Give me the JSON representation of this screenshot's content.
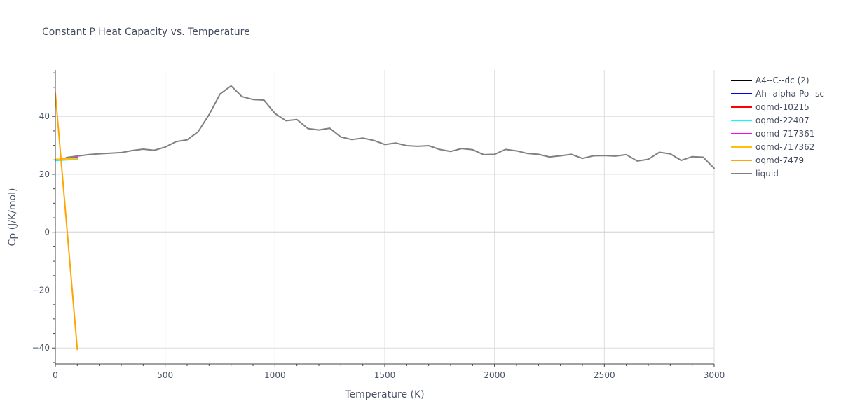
{
  "chart_data": {
    "type": "line",
    "title": "Constant P Heat Capacity vs. Temperature",
    "xlabel": "Temperature (K)",
    "ylabel": "Cp (J/K/mol)",
    "xlim": [
      0,
      3000
    ],
    "ylim": [
      -45.5,
      56
    ],
    "x_ticks": [
      0,
      500,
      1000,
      1500,
      2000,
      2500,
      3000
    ],
    "x_tick_labels": [
      "0",
      "500",
      "1000",
      "1500",
      "2000",
      "2500",
      "3000"
    ],
    "y_ticks": [
      -40,
      -20,
      0,
      20,
      40
    ],
    "y_tick_labels": [
      "−40",
      "−20",
      "0",
      "20",
      "40"
    ],
    "grid": true,
    "legend_position": "top-right",
    "series": [
      {
        "name": "A4--C--dc (2)",
        "color": "#000000",
        "x": [
          0,
          100
        ],
        "y": [
          25.0,
          25.3
        ]
      },
      {
        "name": "Ah--alpha-Po--sc",
        "color": "#0000ff",
        "x": [
          0,
          100
        ],
        "y": [
          25.0,
          25.5
        ]
      },
      {
        "name": "oqmd-10215",
        "color": "#ff0000",
        "x": [
          0,
          100
        ],
        "y": [
          25.0,
          25.6
        ]
      },
      {
        "name": "oqmd-22407",
        "color": "#00ffff",
        "x": [
          0,
          100
        ],
        "y": [
          24.8,
          25.2
        ]
      },
      {
        "name": "oqmd-717361",
        "color": "#ff00ff",
        "x": [
          0,
          100
        ],
        "y": [
          25.0,
          25.8
        ]
      },
      {
        "name": "oqmd-717362",
        "color": "#ffc107",
        "x": [
          0,
          100
        ],
        "y": [
          25.2,
          25.4
        ]
      },
      {
        "name": "oqmd-7479",
        "color": "#ffa500",
        "x": [
          0,
          100
        ],
        "y": [
          48.0,
          -40.5
        ]
      },
      {
        "name": "liquid",
        "color": "#808080",
        "x": [
          50,
          100,
          150,
          200,
          250,
          300,
          350,
          400,
          450,
          500,
          550,
          600,
          650,
          700,
          750,
          800,
          850,
          900,
          950,
          1000,
          1050,
          1100,
          1150,
          1200,
          1250,
          1300,
          1350,
          1400,
          1450,
          1500,
          1550,
          1600,
          1650,
          1700,
          1750,
          1800,
          1850,
          1900,
          1950,
          2000,
          2050,
          2100,
          2150,
          2200,
          2250,
          2300,
          2350,
          2400,
          2450,
          2500,
          2550,
          2600,
          2650,
          2700,
          2750,
          2800,
          2850,
          2900,
          2950,
          3000
        ],
        "y": [
          25.8,
          26.3,
          26.8,
          27.1,
          27.3,
          27.5,
          28.2,
          28.7,
          28.3,
          29.4,
          31.3,
          31.9,
          34.7,
          40.6,
          47.7,
          50.5,
          46.8,
          45.8,
          45.6,
          41.0,
          38.5,
          38.9,
          35.8,
          35.3,
          35.9,
          32.9,
          32.0,
          32.5,
          31.7,
          30.3,
          30.8,
          29.9,
          29.7,
          29.9,
          28.6,
          27.9,
          28.9,
          28.5,
          26.8,
          26.9,
          28.6,
          28.1,
          27.2,
          26.9,
          26.0,
          26.4,
          26.9,
          25.5,
          26.4,
          26.5,
          26.3,
          26.8,
          24.6,
          25.2,
          27.6,
          27.1,
          24.8,
          26.1,
          25.9,
          22.1
        ]
      }
    ]
  }
}
